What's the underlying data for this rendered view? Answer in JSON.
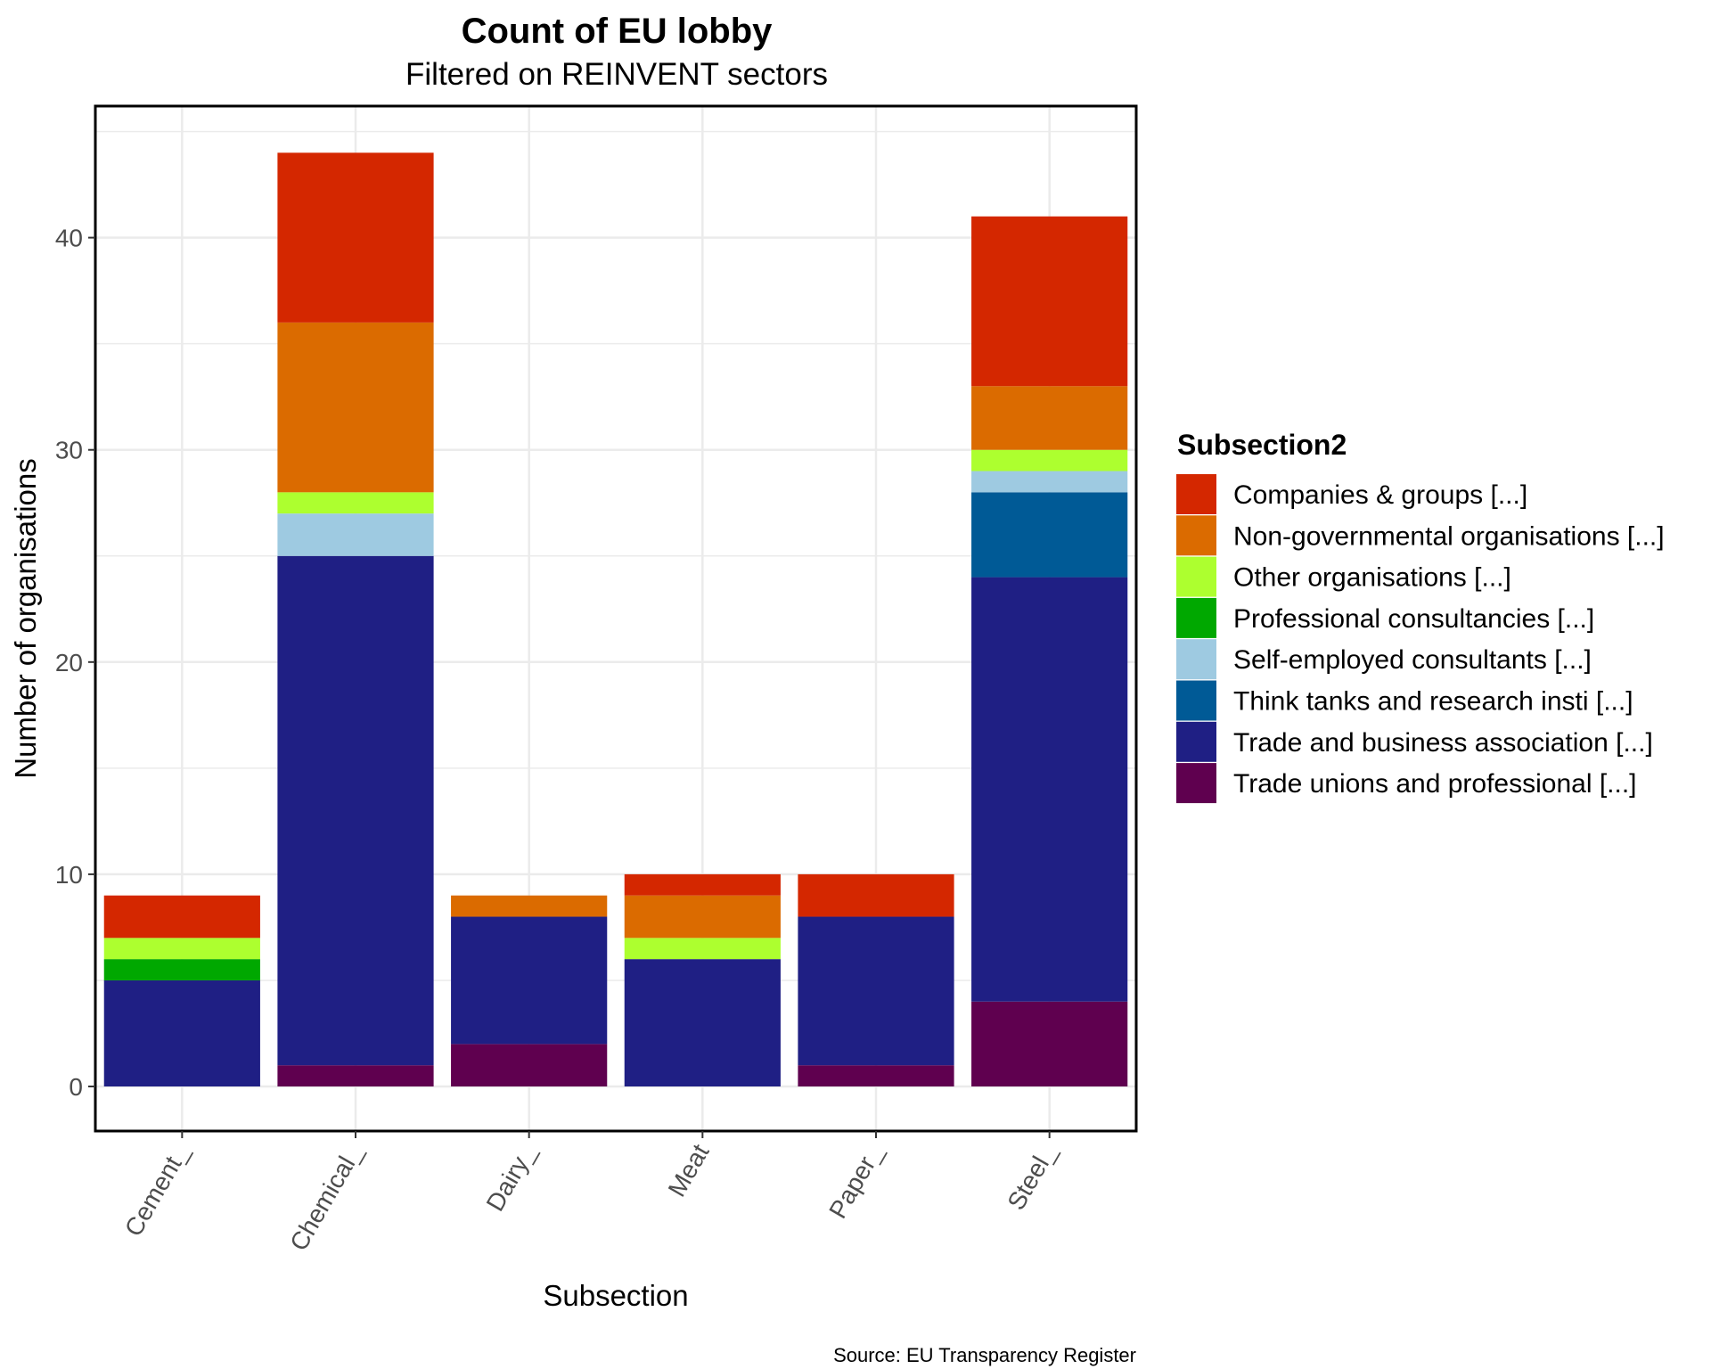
{
  "chart_data": {
    "type": "bar",
    "stacked": true,
    "title": "Count of EU lobby",
    "subtitle": "Filtered on REINVENT sectors",
    "xlabel": "Subsection",
    "ylabel": "Number of organisations",
    "caption": "Source: EU Transparency Register",
    "categories": [
      "Cement_",
      "Chemical_",
      "Dairy_",
      "Meat",
      "Paper_",
      "Steel_"
    ],
    "y_ticks": [
      0,
      10,
      20,
      30,
      40
    ],
    "ylim": [
      -2.1,
      46.2
    ],
    "grid": true,
    "legend": {
      "title": "Subsection2",
      "position": "right"
    },
    "series": [
      {
        "name": "Trade unions and professional  [...]",
        "color": "#5f004f",
        "values": [
          0,
          1,
          2,
          0,
          1,
          4
        ]
      },
      {
        "name": "Trade and business association [...]",
        "color": "#1f1f84",
        "values": [
          5,
          24,
          6,
          6,
          7,
          20
        ]
      },
      {
        "name": "Think tanks and research insti [...]",
        "color": "#005a96",
        "values": [
          0,
          0,
          0,
          0,
          0,
          4
        ]
      },
      {
        "name": "Self-employed consultants [...]",
        "color": "#9ecae1",
        "values": [
          0,
          2,
          0,
          0,
          0,
          1
        ]
      },
      {
        "name": "Professional consultancies [...]",
        "color": "#00a800",
        "values": [
          1,
          0,
          0,
          0,
          0,
          0
        ]
      },
      {
        "name": "Other organisations [...]",
        "color": "#adff2f",
        "values": [
          1,
          1,
          0,
          1,
          0,
          1
        ]
      },
      {
        "name": "Non-governmental organisations [...]",
        "color": "#db6b00",
        "values": [
          0,
          8,
          1,
          2,
          0,
          3
        ]
      },
      {
        "name": "Companies & groups [...]",
        "color": "#d42700",
        "values": [
          2,
          8,
          0,
          1,
          2,
          8
        ]
      }
    ],
    "legend_order": [
      "Companies & groups [...]",
      "Non-governmental organisations [...]",
      "Other organisations [...]",
      "Professional consultancies [...]",
      "Self-employed consultants [...]",
      "Think tanks and research insti [...]",
      "Trade and business association [...]",
      "Trade unions and professional  [...]"
    ]
  }
}
